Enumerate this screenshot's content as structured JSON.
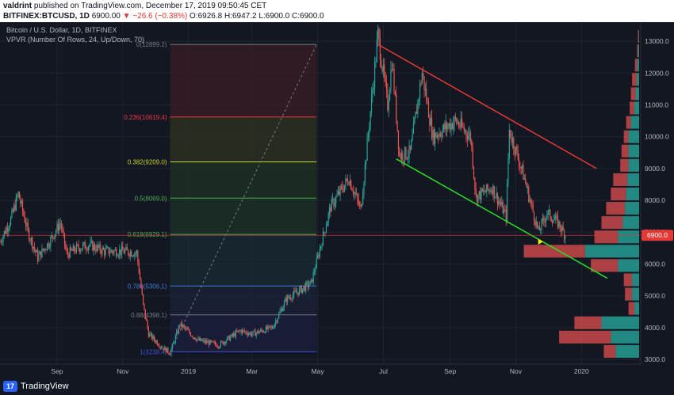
{
  "header": {
    "publisher": "valdrint",
    "published_text": "published on TradingView.com, December 17, 2019 09:50:45 CET",
    "symbol": "BITFINEX:BTCUSD, 1D",
    "price": "6900.00",
    "change": "▼ −26.6 (−0.38%)",
    "ohlc": "O:6926.8 H:6947.2 L:6900.0 C:6900.0"
  },
  "legend": {
    "title": "Bitcoin / U.S. Dollar, 1D, BITFINEX",
    "indicator": "VPVR (Number Of Rows, 24, Up/Down, 70)"
  },
  "footer": {
    "brand": "TradingView",
    "logo": "17"
  },
  "colors": {
    "up": "#26a69a",
    "down": "#ef5350",
    "bg": "#131722",
    "price_badge": "#e53935"
  },
  "chart_data": {
    "type": "candlestick",
    "price_label": "6900.0",
    "y_axis": {
      "ticks": [
        3000,
        4000,
        5000,
        6000,
        7000,
        8000,
        9000,
        10000,
        11000,
        12000,
        13000
      ],
      "tick_labels": [
        "3000.0",
        "4000.0",
        "5000.0",
        "6000.0",
        "7000.0",
        "8000.0",
        "9000.0",
        "10000.0",
        "11000.0",
        "12000.0",
        "13000.0"
      ],
      "range": [
        2850,
        13600
      ]
    },
    "x_axis": {
      "labels": [
        "Sep",
        "Nov",
        "2019",
        "Mar",
        "May",
        "Jul",
        "Sep",
        "Nov",
        "2020"
      ],
      "dates": [
        "2018-09-01",
        "2018-11-01",
        "2019-01-01",
        "2019-03-01",
        "2019-05-01",
        "2019-07-01",
        "2019-09-01",
        "2019-11-01",
        "2020-01-01"
      ],
      "range": [
        "2018-07-10",
        "2020-02-25"
      ]
    },
    "price_path": [
      [
        "2018-07-10",
        6700
      ],
      [
        "2018-07-20",
        7400
      ],
      [
        "2018-07-27",
        8200
      ],
      [
        "2018-08-05",
        7000
      ],
      [
        "2018-08-14",
        6200
      ],
      [
        "2018-08-25",
        6700
      ],
      [
        "2018-09-04",
        7300
      ],
      [
        "2018-09-10",
        6300
      ],
      [
        "2018-09-20",
        6500
      ],
      [
        "2018-10-01",
        6600
      ],
      [
        "2018-10-15",
        6400
      ],
      [
        "2018-11-01",
        6400
      ],
      [
        "2018-11-14",
        6350
      ],
      [
        "2018-11-20",
        4700
      ],
      [
        "2018-11-25",
        3800
      ],
      [
        "2018-12-07",
        3400
      ],
      [
        "2018-12-15",
        3200
      ],
      [
        "2018-12-24",
        4100
      ],
      [
        "2019-01-10",
        3600
      ],
      [
        "2019-01-29",
        3450
      ],
      [
        "2019-02-18",
        3900
      ],
      [
        "2019-03-01",
        3800
      ],
      [
        "2019-03-20",
        4000
      ],
      [
        "2019-04-02",
        4900
      ],
      [
        "2019-04-25",
        5400
      ],
      [
        "2019-05-13",
        7800
      ],
      [
        "2019-05-30",
        8700
      ],
      [
        "2019-06-10",
        7700
      ],
      [
        "2019-06-26",
        13200
      ],
      [
        "2019-07-05",
        11000
      ],
      [
        "2019-07-09",
        12400
      ],
      [
        "2019-07-16",
        9400
      ],
      [
        "2019-07-26",
        9500
      ],
      [
        "2019-08-06",
        12000
      ],
      [
        "2019-08-16",
        10000
      ],
      [
        "2019-09-06",
        10500
      ],
      [
        "2019-09-20",
        10000
      ],
      [
        "2019-09-25",
        8100
      ],
      [
        "2019-10-10",
        8400
      ],
      [
        "2019-10-23",
        7500
      ],
      [
        "2019-10-26",
        10200
      ],
      [
        "2019-11-08",
        8800
      ],
      [
        "2019-11-22",
        7000
      ],
      [
        "2019-11-30",
        7600
      ],
      [
        "2019-12-10",
        7300
      ],
      [
        "2019-12-17",
        6900
      ]
    ],
    "fibonacci": [
      {
        "label": "0(12899.2)",
        "value": 12899.2,
        "color": "#787b86"
      },
      {
        "label": "0.236(10619.4)",
        "value": 10619.4,
        "color": "#f23645"
      },
      {
        "label": "0.382(9209.0)",
        "value": 9209.0,
        "color": "#c9d42a"
      },
      {
        "label": "0.5(8069.0)",
        "value": 8069.0,
        "color": "#4caf50"
      },
      {
        "label": "0.618(6929.1)",
        "value": 6929.1,
        "color": "#4caf50"
      },
      {
        "label": "0.786(5306.1)",
        "value": 5306.1,
        "color": "#3d7ed9"
      },
      {
        "label": "0.88(4398.1)",
        "value": 4398.1,
        "color": "#787b86"
      },
      {
        "label": "1(3238.4)",
        "value": 3238.4,
        "color": "#3d50d9"
      }
    ],
    "fib_range": {
      "start": "2018-12-15",
      "end": "2019-04-30"
    },
    "trendlines": [
      {
        "name": "resistance",
        "color": "#e53935",
        "from": [
          "2019-06-26",
          12900
        ],
        "to": [
          "2020-01-15",
          9000
        ]
      },
      {
        "name": "support",
        "color": "#26e026",
        "from": [
          "2019-07-13",
          9300
        ],
        "to": [
          "2020-01-25",
          5550
        ]
      }
    ],
    "vpvr_rows": [
      {
        "price": 3250,
        "up": 1.0,
        "down": 0.5
      },
      {
        "price": 3700,
        "up": 1.2,
        "down": 2.2
      },
      {
        "price": 4150,
        "up": 1.6,
        "down": 1.15
      },
      {
        "price": 4600,
        "up": 0.2,
        "down": 0.25
      },
      {
        "price": 5050,
        "up": 0.3,
        "down": 0.3
      },
      {
        "price": 5500,
        "up": 0.3,
        "down": 0.35
      },
      {
        "price": 5950,
        "up": 0.9,
        "down": 1.15
      },
      {
        "price": 6400,
        "up": 2.3,
        "down": 2.6
      },
      {
        "price": 6850,
        "up": 0.9,
        "down": 1.0
      },
      {
        "price": 7300,
        "up": 0.7,
        "down": 0.9
      },
      {
        "price": 7750,
        "up": 0.6,
        "down": 0.8
      },
      {
        "price": 8200,
        "up": 0.55,
        "down": 0.65
      },
      {
        "price": 8650,
        "up": 0.5,
        "down": 0.6
      },
      {
        "price": 9100,
        "up": 0.45,
        "down": 0.35
      },
      {
        "price": 9550,
        "up": 0.45,
        "down": 0.3
      },
      {
        "price": 10000,
        "up": 0.45,
        "down": 0.2
      },
      {
        "price": 10450,
        "up": 0.35,
        "down": 0.2
      },
      {
        "price": 10900,
        "up": 0.2,
        "down": 0.2
      },
      {
        "price": 11350,
        "up": 0.15,
        "down": 0.2
      },
      {
        "price": 11800,
        "up": 0.1,
        "down": 0.2
      },
      {
        "price": 12250,
        "up": 0.08,
        "down": 0.1
      },
      {
        "price": 12700,
        "up": 0.04,
        "down": 0.05
      },
      {
        "price": 13150,
        "up": 0.02,
        "down": 0.03
      }
    ],
    "marker": {
      "date": "2019-11-24",
      "price": 6700,
      "color": "#f9e70b"
    }
  }
}
